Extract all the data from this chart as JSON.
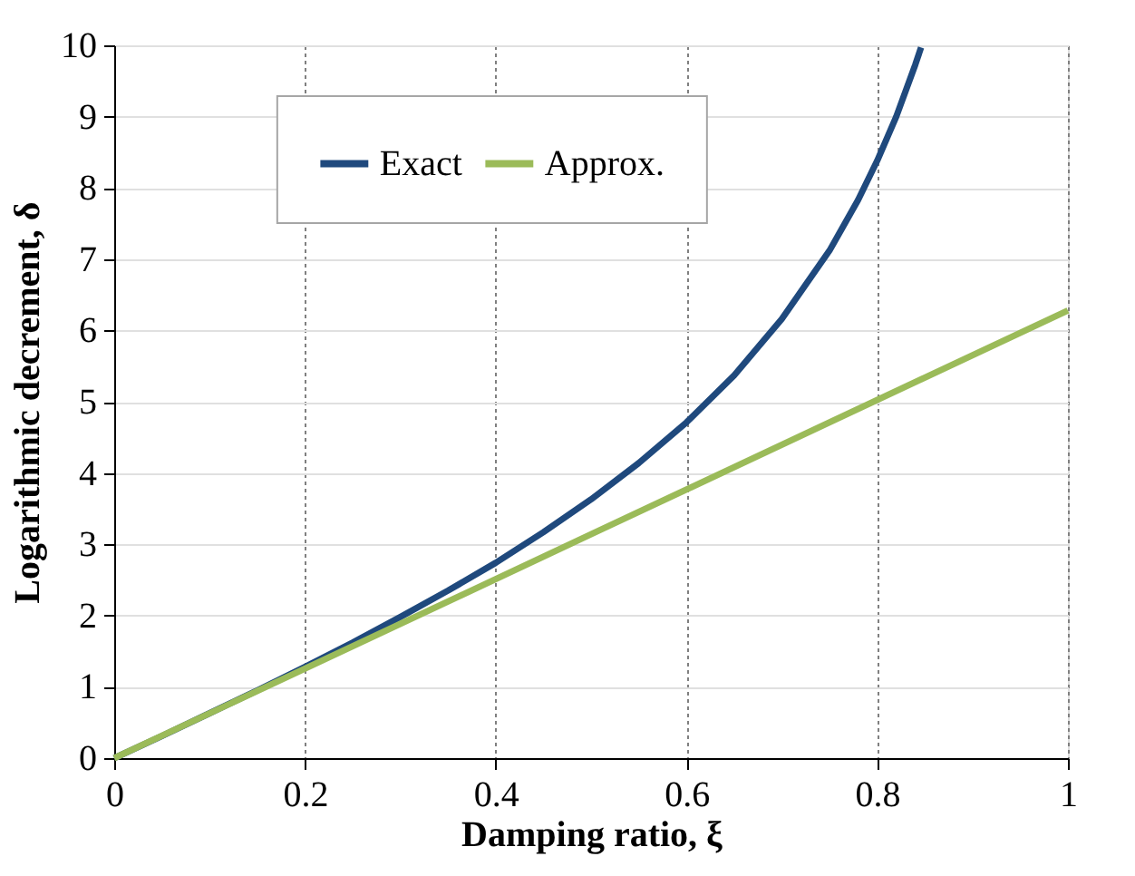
{
  "chart_data": {
    "type": "line",
    "xlabel": "Damping ratio, ξ",
    "ylabel": "Logarithmic decrement, δ",
    "xlim": [
      0,
      1
    ],
    "xticks": [
      0,
      0.2,
      0.4,
      0.6,
      0.8,
      1
    ],
    "ylim": [
      0,
      10
    ],
    "yticks": [
      0,
      1,
      2,
      3,
      4,
      5,
      6,
      7,
      8,
      9,
      10
    ],
    "grid": true,
    "legend": "top",
    "line_style": "solid",
    "marker": "none",
    "series": [
      {
        "name": "Exact",
        "color": "#1f497d",
        "x": [
          0,
          0.05,
          0.1,
          0.15,
          0.2,
          0.25,
          0.3,
          0.35,
          0.4,
          0.45,
          0.5,
          0.55,
          0.6,
          0.65,
          0.7,
          0.75,
          0.78,
          0.8,
          0.82,
          0.84,
          0.846
        ],
        "values": [
          0,
          0.31,
          0.63,
          0.95,
          1.28,
          1.62,
          1.98,
          2.35,
          2.74,
          3.17,
          3.63,
          4.14,
          4.71,
          5.37,
          6.16,
          7.12,
          7.83,
          8.38,
          9.0,
          9.73,
          9.97
        ]
      },
      {
        "name": "Approx.",
        "color": "#9bbb59",
        "x": [
          0,
          0.5,
          1
        ],
        "values": [
          0,
          3.14,
          6.28
        ]
      }
    ]
  }
}
